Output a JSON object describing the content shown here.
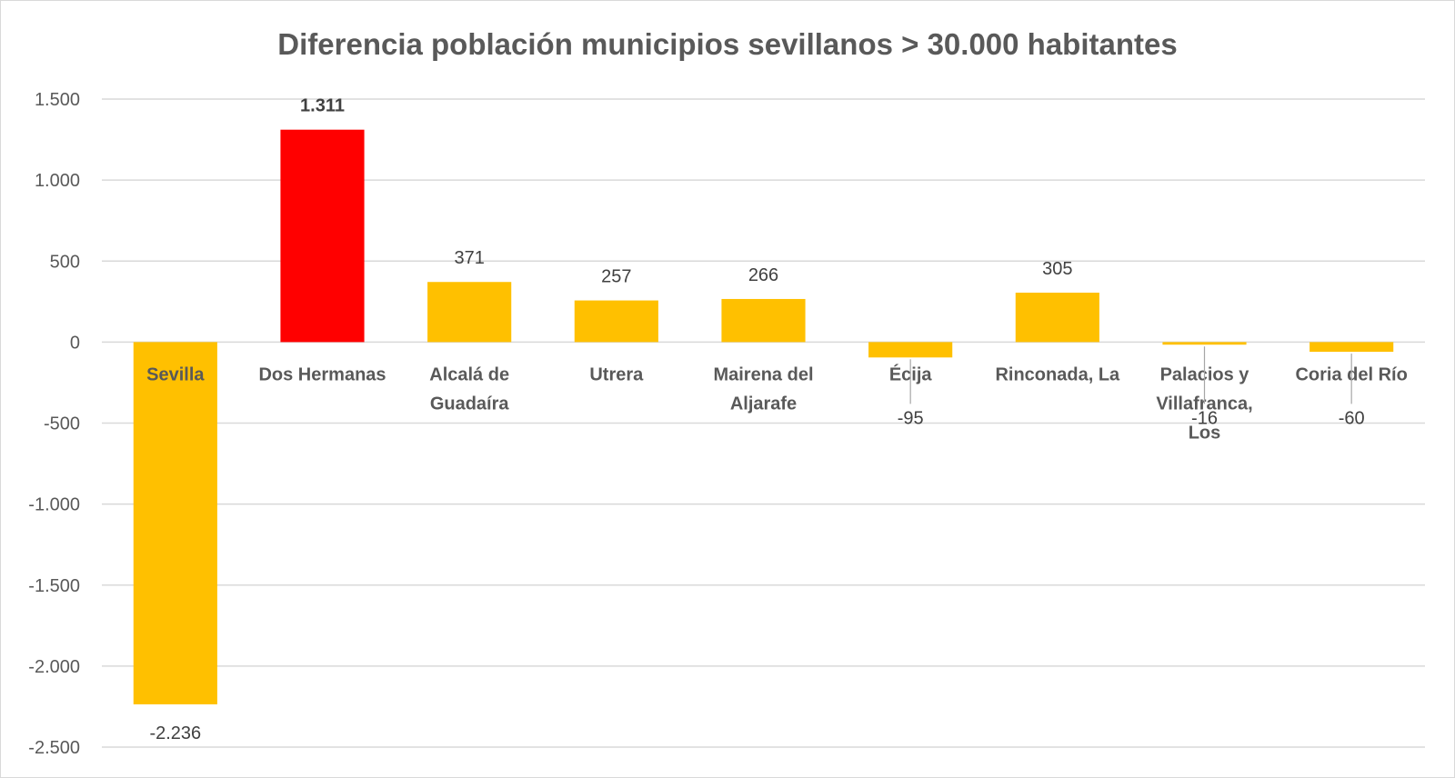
{
  "chart_data": {
    "type": "bar",
    "title": "Diferencia población municipios sevillanos > 30.000 habitantes",
    "xlabel": "",
    "ylabel": "",
    "ylim": [
      -2500,
      1500
    ],
    "yticks": [
      1500,
      1000,
      500,
      0,
      -500,
      -1000,
      -1500,
      -2000,
      -2500
    ],
    "ytick_labels": [
      "1.500",
      "1.000",
      "500",
      "0",
      "-500",
      "-1.000",
      "-1.500",
      "-2.000",
      "-2.500"
    ],
    "grid": true,
    "legend": "none",
    "categories": [
      "Sevilla",
      "Dos Hermanas",
      "Alcalá de Guadaíra",
      "Utrera",
      "Mairena del Aljarafe",
      "Écija",
      "Rinconada, La",
      "Palacios y Villafranca, Los",
      "Coria del Río"
    ],
    "category_label_lines": [
      [
        "Sevilla"
      ],
      [
        "Dos Hermanas"
      ],
      [
        "Alcalá de",
        "Guadaíra"
      ],
      [
        "Utrera"
      ],
      [
        "Mairena del",
        "Aljarafe"
      ],
      [
        "Écija"
      ],
      [
        "Rinconada, La"
      ],
      [
        "Palacios y",
        "Villafranca,",
        "Los"
      ],
      [
        "Coria del Río"
      ]
    ],
    "values": [
      -2236,
      1311,
      371,
      257,
      266,
      -95,
      305,
      -16,
      -60
    ],
    "data_labels": [
      "-2.236",
      "1.311",
      "371",
      "257",
      "266",
      "-95",
      "305",
      "-16",
      "-60"
    ],
    "bar_colors": [
      "#FFC000",
      "#FF0000",
      "#FFC000",
      "#FFC000",
      "#FFC000",
      "#FFC000",
      "#FFC000",
      "#FFC000",
      "#FFC000"
    ],
    "highlight_index": 1
  }
}
